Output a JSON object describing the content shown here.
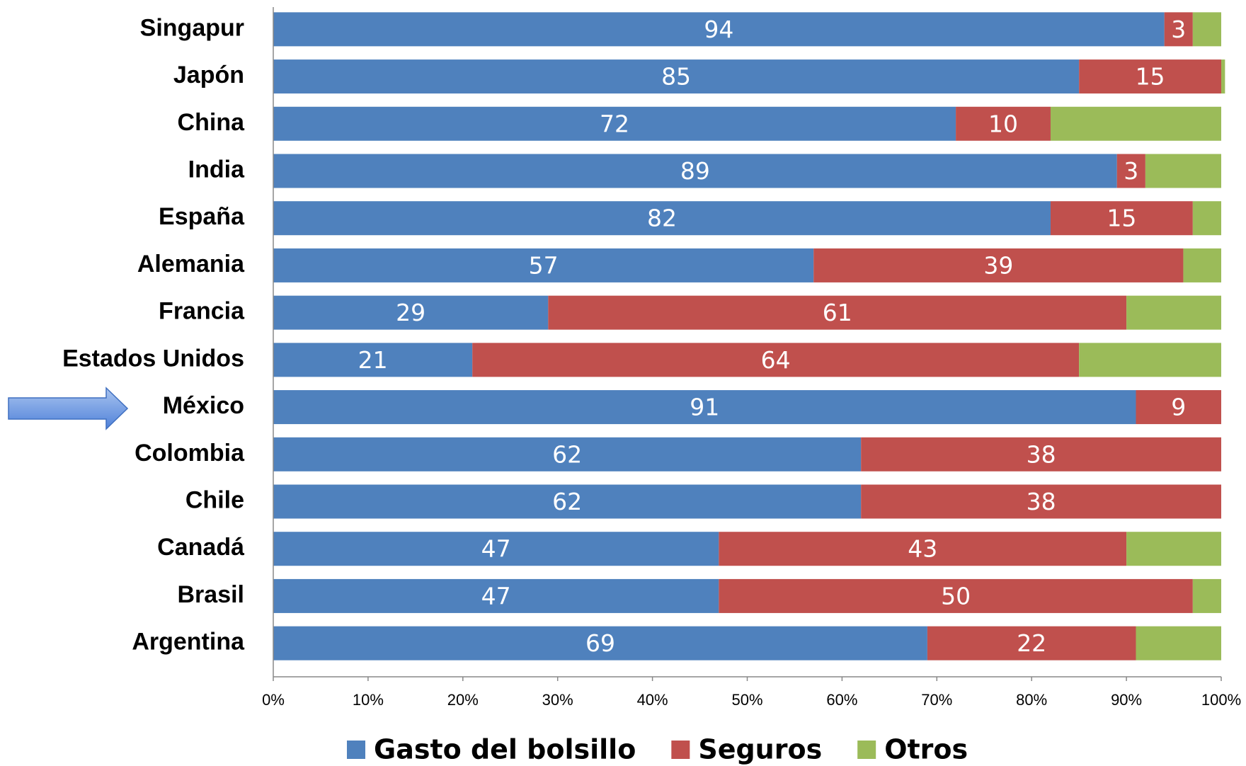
{
  "chart_data": {
    "type": "stacked_barh",
    "categories": [
      "Singapur",
      "Japón",
      "China",
      "India",
      "España",
      "Alemania",
      "Francia",
      "Estados Unidos",
      "México",
      "Colombia",
      "Chile",
      "Canadá",
      "Brasil",
      "Argentina"
    ],
    "series": [
      {
        "name": "Gasto del bolsillo",
        "color": "#4f81bd",
        "data_labels": true,
        "values": [
          94,
          85,
          72,
          89,
          82,
          57,
          29,
          21,
          91,
          62,
          62,
          47,
          47,
          69
        ]
      },
      {
        "name": "Seguros",
        "color": "#c0504d",
        "data_labels": true,
        "values": [
          3,
          15,
          10,
          3,
          15,
          39,
          61,
          64,
          9,
          38,
          38,
          43,
          50,
          22
        ]
      },
      {
        "name": "Otros",
        "color": "#9bbb59",
        "data_labels": false,
        "values": [
          3,
          0.4,
          18,
          8,
          3,
          4,
          10,
          15,
          0,
          0,
          0,
          10,
          3,
          9
        ]
      }
    ],
    "xlim": [
      0,
      100
    ],
    "xticks": [
      {
        "value": 0,
        "label": "0%"
      },
      {
        "value": 10,
        "label": "10%"
      },
      {
        "value": 20,
        "label": "20%"
      },
      {
        "value": 30,
        "label": "30%"
      },
      {
        "value": 40,
        "label": "40%"
      },
      {
        "value": 50,
        "label": "50%"
      },
      {
        "value": 60,
        "label": "60%"
      },
      {
        "value": 70,
        "label": "70%"
      },
      {
        "value": 80,
        "label": "80%"
      },
      {
        "value": 90,
        "label": "90%"
      },
      {
        "value": 100,
        "label": "100%"
      }
    ],
    "grid": false,
    "legend": "bottom"
  }
}
